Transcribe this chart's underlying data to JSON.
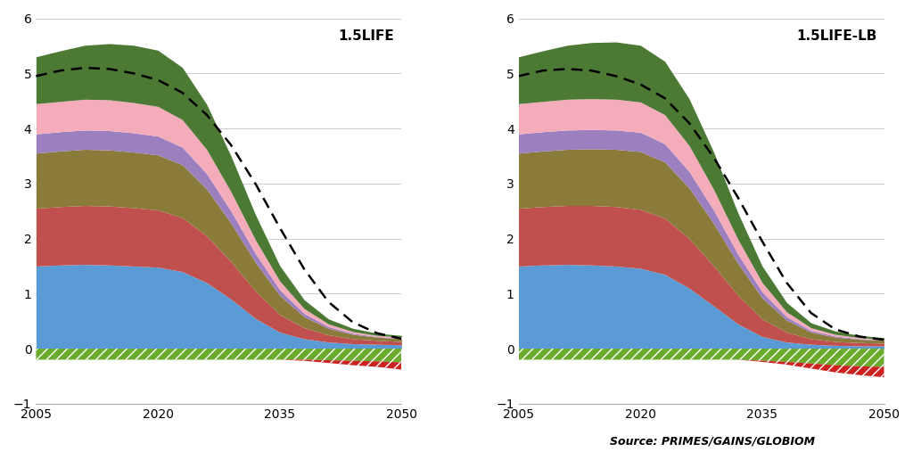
{
  "years": [
    2005,
    2008,
    2011,
    2014,
    2017,
    2020,
    2023,
    2026,
    2029,
    2032,
    2035,
    2038,
    2041,
    2044,
    2047,
    2050
  ],
  "chart1_title": "1.5LIFE",
  "chart2_title": "1.5LIFE-LB",
  "source_text": "Source: PRIMES/GAINS/GLOBIOM",
  "ylim": [
    -1,
    6
  ],
  "yticks": [
    -1,
    0,
    1,
    2,
    3,
    4,
    5,
    6
  ],
  "xticks": [
    2005,
    2020,
    2035,
    2050
  ],
  "colors": {
    "blue": "#5B9BD5",
    "red": "#C0504D",
    "olive": "#8B7B3A",
    "purple": "#9B7FBF",
    "pink": "#F4ACBA",
    "dark_green": "#4C7A34",
    "hatch_green": "#6AAB2E",
    "hatch_red": "#CC2222"
  },
  "chart1": {
    "blue": [
      1.5,
      1.52,
      1.53,
      1.52,
      1.5,
      1.48,
      1.4,
      1.2,
      0.9,
      0.55,
      0.3,
      0.18,
      0.12,
      0.09,
      0.08,
      0.07
    ],
    "red": [
      1.05,
      1.06,
      1.07,
      1.07,
      1.06,
      1.04,
      0.98,
      0.85,
      0.68,
      0.5,
      0.32,
      0.2,
      0.13,
      0.09,
      0.07,
      0.06
    ],
    "olive": [
      1.0,
      1.01,
      1.02,
      1.02,
      1.01,
      1.0,
      0.96,
      0.85,
      0.7,
      0.52,
      0.35,
      0.2,
      0.12,
      0.08,
      0.06,
      0.05
    ],
    "purple": [
      0.35,
      0.35,
      0.35,
      0.35,
      0.35,
      0.34,
      0.32,
      0.28,
      0.22,
      0.16,
      0.1,
      0.06,
      0.03,
      0.02,
      0.01,
      0.01
    ],
    "pink": [
      0.55,
      0.55,
      0.56,
      0.56,
      0.55,
      0.54,
      0.5,
      0.44,
      0.35,
      0.25,
      0.16,
      0.09,
      0.05,
      0.03,
      0.02,
      0.02
    ],
    "dark_green": [
      0.85,
      0.92,
      0.98,
      1.02,
      1.04,
      1.02,
      0.95,
      0.82,
      0.65,
      0.46,
      0.28,
      0.16,
      0.09,
      0.06,
      0.04,
      0.03
    ],
    "hatch_green": [
      -0.2,
      -0.2,
      -0.2,
      -0.2,
      -0.2,
      -0.2,
      -0.2,
      -0.2,
      -0.2,
      -0.2,
      -0.2,
      -0.2,
      -0.21,
      -0.22,
      -0.23,
      -0.25
    ],
    "hatch_red": [
      0.0,
      0.0,
      0.0,
      0.0,
      0.0,
      0.0,
      0.0,
      0.0,
      0.0,
      0.0,
      0.0,
      -0.02,
      -0.05,
      -0.08,
      -0.1,
      -0.13
    ],
    "dashed": [
      4.95,
      5.05,
      5.1,
      5.08,
      5.0,
      4.88,
      4.65,
      4.25,
      3.7,
      3.0,
      2.2,
      1.45,
      0.85,
      0.48,
      0.28,
      0.18
    ]
  },
  "chart2": {
    "blue": [
      1.5,
      1.52,
      1.53,
      1.52,
      1.5,
      1.46,
      1.35,
      1.1,
      0.78,
      0.45,
      0.22,
      0.12,
      0.08,
      0.06,
      0.05,
      0.05
    ],
    "red": [
      1.05,
      1.06,
      1.07,
      1.08,
      1.08,
      1.07,
      1.02,
      0.9,
      0.73,
      0.52,
      0.32,
      0.18,
      0.1,
      0.07,
      0.06,
      0.05
    ],
    "olive": [
      1.0,
      1.01,
      1.02,
      1.03,
      1.04,
      1.05,
      1.02,
      0.92,
      0.77,
      0.58,
      0.38,
      0.22,
      0.12,
      0.08,
      0.06,
      0.05
    ],
    "purple": [
      0.35,
      0.35,
      0.35,
      0.35,
      0.35,
      0.35,
      0.33,
      0.3,
      0.24,
      0.17,
      0.11,
      0.06,
      0.03,
      0.02,
      0.01,
      0.01
    ],
    "pink": [
      0.55,
      0.55,
      0.56,
      0.56,
      0.56,
      0.55,
      0.53,
      0.47,
      0.38,
      0.27,
      0.17,
      0.09,
      0.05,
      0.03,
      0.02,
      0.01
    ],
    "dark_green": [
      0.85,
      0.92,
      0.98,
      1.02,
      1.04,
      1.03,
      0.97,
      0.85,
      0.68,
      0.48,
      0.3,
      0.17,
      0.09,
      0.06,
      0.04,
      0.03
    ],
    "hatch_green": [
      -0.2,
      -0.2,
      -0.2,
      -0.2,
      -0.2,
      -0.2,
      -0.2,
      -0.2,
      -0.2,
      -0.2,
      -0.22,
      -0.24,
      -0.27,
      -0.3,
      -0.32,
      -0.33
    ],
    "hatch_red": [
      0.0,
      0.0,
      0.0,
      0.0,
      0.0,
      0.0,
      0.0,
      0.0,
      0.0,
      0.0,
      -0.02,
      -0.05,
      -0.09,
      -0.13,
      -0.16,
      -0.19
    ],
    "dashed": [
      4.95,
      5.05,
      5.08,
      5.05,
      4.95,
      4.8,
      4.55,
      4.1,
      3.48,
      2.75,
      1.95,
      1.2,
      0.65,
      0.35,
      0.22,
      0.16
    ]
  }
}
